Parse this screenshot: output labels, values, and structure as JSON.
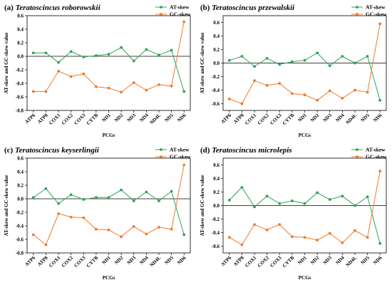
{
  "colors": {
    "at": "#2ea35a",
    "gc": "#f07a2a"
  },
  "chart_data": [
    {
      "type": "line",
      "panel": "(a)",
      "title": "Teratoscincus roborowskii",
      "xlabel": "PCGs",
      "ylabel": "AT-skew and GC-skew value",
      "ylim": [
        -0.8,
        0.6
      ],
      "yticks": [
        "-0.8",
        "-0.6",
        "-0.4",
        "-0.2",
        "0.0",
        "0.2",
        "0.4",
        "0.6"
      ],
      "categories": [
        "ATP6",
        "ATP8",
        "COX1",
        "COX2",
        "COX3",
        "CYTB",
        "ND1",
        "ND2",
        "ND3",
        "ND4",
        "ND4L",
        "ND5",
        "ND6"
      ],
      "legend": "top-right",
      "series": [
        {
          "name": "AT-skew",
          "values": [
            0.05,
            0.05,
            -0.09,
            0.07,
            -0.01,
            0.01,
            0.03,
            0.13,
            -0.07,
            0.1,
            0.02,
            0.09,
            -0.52
          ]
        },
        {
          "name": "GC-skew",
          "values": [
            -0.52,
            -0.52,
            -0.22,
            -0.3,
            -0.26,
            -0.45,
            -0.47,
            -0.53,
            -0.39,
            -0.5,
            -0.42,
            -0.44,
            0.51
          ]
        }
      ]
    },
    {
      "type": "line",
      "panel": "(b)",
      "title": "Teratoscincus przewalskii",
      "xlabel": "PCGs",
      "ylabel": "AT-skew and GC-skew value",
      "ylim": [
        -0.7,
        0.7
      ],
      "yticks": [
        "-0.6",
        "-0.4",
        "-0.2",
        "0.0",
        "0.2",
        "0.4",
        "0.6"
      ],
      "categories": [
        "ATP6",
        "ATP8",
        "COX1",
        "COX2",
        "COX3",
        "CYTB",
        "ND1",
        "ND2",
        "ND3",
        "ND4",
        "ND4L",
        "ND5",
        "ND6"
      ],
      "legend": "top-right",
      "series": [
        {
          "name": "AT-skew",
          "values": [
            0.04,
            0.1,
            -0.05,
            0.07,
            -0.02,
            0.02,
            0.04,
            0.15,
            -0.04,
            0.1,
            0.0,
            0.1,
            -0.55
          ]
        },
        {
          "name": "GC-skew",
          "values": [
            -0.53,
            -0.6,
            -0.26,
            -0.33,
            -0.3,
            -0.45,
            -0.47,
            -0.55,
            -0.41,
            -0.52,
            -0.4,
            -0.43,
            0.58
          ]
        }
      ]
    },
    {
      "type": "line",
      "panel": "(c)",
      "title": "Teratoscincus keyserlingii",
      "xlabel": "PCGs",
      "ylabel": "AT-skew and GC-skew value",
      "ylim": [
        -0.8,
        0.6
      ],
      "yticks": [
        "-0.8",
        "-0.6",
        "-0.4",
        "-0.2",
        "0.0",
        "0.2",
        "0.4",
        "0.6"
      ],
      "categories": [
        "ATP6",
        "ATP8",
        "COX1",
        "COX2",
        "COX3",
        "CYTB",
        "ND1",
        "ND2",
        "ND3",
        "ND4",
        "ND4L",
        "ND5",
        "ND6"
      ],
      "legend": "top-right",
      "series": [
        {
          "name": "AT-skew",
          "values": [
            0.02,
            0.15,
            -0.07,
            0.06,
            -0.01,
            0.02,
            0.02,
            0.13,
            -0.03,
            0.1,
            -0.03,
            0.11,
            -0.53
          ]
        },
        {
          "name": "GC-skew",
          "values": [
            -0.53,
            -0.68,
            -0.22,
            -0.27,
            -0.28,
            -0.45,
            -0.46,
            -0.56,
            -0.41,
            -0.52,
            -0.42,
            -0.45,
            0.5
          ]
        }
      ]
    },
    {
      "type": "line",
      "panel": "(d)",
      "title": "Teratoscincus microlepis",
      "xlabel": "PCGs",
      "ylabel": "AT-skew and GC-skew value",
      "ylim": [
        -0.7,
        0.7
      ],
      "yticks": [
        "-0.6",
        "-0.4",
        "-0.2",
        "0.0",
        "0.2",
        "0.4",
        "0.6"
      ],
      "categories": [
        "ATP6",
        "ATP8",
        "COX1",
        "COX2",
        "COX3",
        "CYTB",
        "ND1",
        "ND2",
        "ND3",
        "ND4",
        "ND4L",
        "ND5",
        "ND6"
      ],
      "legend": "top-right",
      "series": [
        {
          "name": "AT-skew",
          "values": [
            0.08,
            0.27,
            -0.02,
            0.14,
            0.03,
            0.07,
            0.03,
            0.19,
            0.09,
            0.14,
            0.0,
            0.13,
            -0.56
          ]
        },
        {
          "name": "GC-skew",
          "values": [
            -0.47,
            -0.58,
            -0.28,
            -0.36,
            -0.28,
            -0.46,
            -0.47,
            -0.51,
            -0.41,
            -0.55,
            -0.37,
            -0.47,
            0.51
          ]
        }
      ]
    }
  ]
}
